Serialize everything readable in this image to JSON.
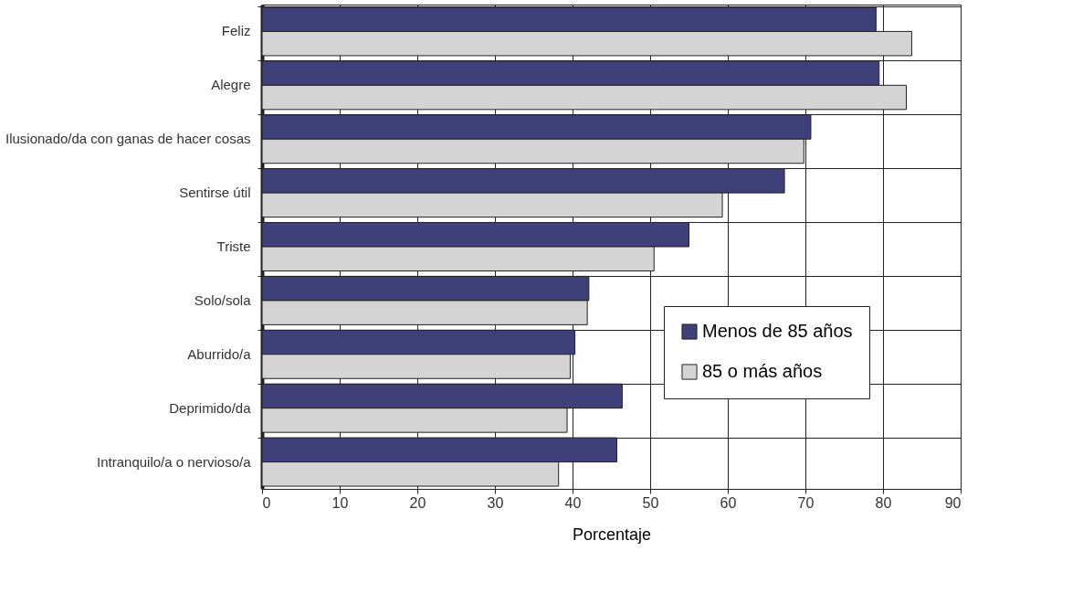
{
  "chart_data": {
    "type": "bar",
    "orientation": "horizontal",
    "xlabel": "Porcentaje",
    "categories": [
      "Feliz",
      "Alegre",
      "Ilusionado/da con ganas de hacer cosas",
      "Sentirse útil",
      "Triste",
      "Solo/sola",
      "Aburrido/a",
      "Deprimido/da",
      "Intranquilo/a o nervioso/a"
    ],
    "series": [
      {
        "name": "Menos de 85 años",
        "color": "#3f3f7a",
        "values": [
          79.1,
          79.5,
          70.7,
          67.3,
          55.0,
          42.1,
          40.3,
          46.4,
          45.7
        ]
      },
      {
        "name": "85 o más años",
        "color": "#d4d4d4",
        "values": [
          83.7,
          83.0,
          69.8,
          59.3,
          50.5,
          41.9,
          39.7,
          39.3,
          38.2
        ]
      }
    ],
    "xlim": [
      0,
      90
    ],
    "xticks": [
      0,
      10,
      20,
      30,
      40,
      50,
      60,
      70,
      80,
      90
    ],
    "grid": true,
    "legend": "bottom right"
  }
}
